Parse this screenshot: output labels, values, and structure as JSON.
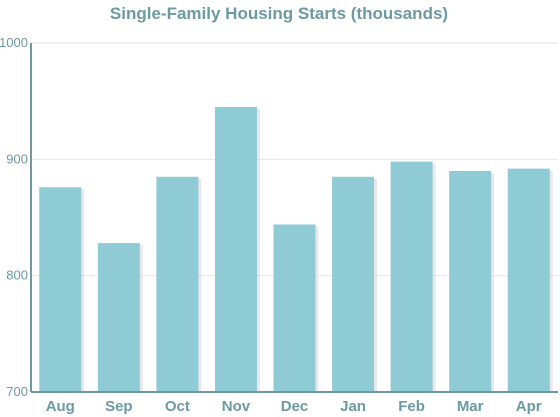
{
  "chart_data": {
    "type": "bar",
    "title": "Single-Family Housing Starts (thousands)",
    "xlabel": "",
    "ylabel": "",
    "categories": [
      "Aug",
      "Sep",
      "Oct",
      "Nov",
      "Dec",
      "Jan",
      "Feb",
      "Mar",
      "Apr"
    ],
    "values": [
      876,
      828,
      885,
      945,
      844,
      885,
      898,
      890,
      892
    ],
    "ylim": [
      700,
      1000
    ],
    "yticks": [
      700,
      800,
      900,
      1000
    ],
    "grid": true,
    "colors": {
      "bar": "#8ecbd5",
      "bar_shadow": "#d9d9d9",
      "text": "#6b9aa3",
      "grid": "#e6e6e6"
    }
  }
}
